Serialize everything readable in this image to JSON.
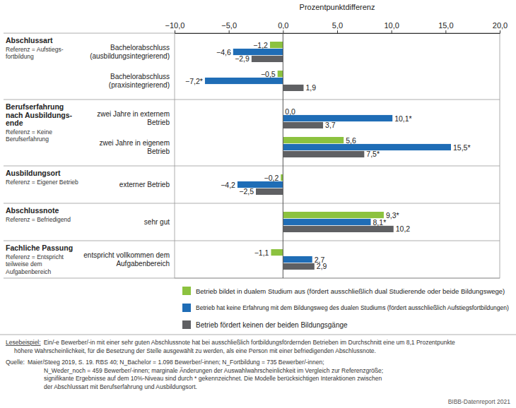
{
  "chart_data": {
    "type": "bar",
    "orientation": "horizontal",
    "xlabel": "Prozentpunktdifferenz",
    "xlim": [
      -10,
      20
    ],
    "xticks": [
      {
        "value": -10,
        "label": "−10,0"
      },
      {
        "value": -5,
        "label": "−5,0"
      },
      {
        "value": 0,
        "label": "0,0"
      },
      {
        "value": 5,
        "label": "5,0"
      },
      {
        "value": 10,
        "label": "10,0"
      },
      {
        "value": 15,
        "label": "15,0"
      },
      {
        "value": 20,
        "label": "20,0"
      }
    ],
    "grid": false,
    "data_labels": true,
    "legend": "bottom",
    "groups": [
      {
        "name": "Abschlussart",
        "reference": "Referenz = Aufstiegs-\nfortbildung",
        "categories": [
          "Bachelorabschluss\n(ausbildungsintegrierend)",
          "Bachelorabschluss\n(praxisintegrierend)"
        ]
      },
      {
        "name": "Berufserfahrung\nnach Ausbildungs-\nende",
        "reference": "Referenz = Keine\nBerufserfahrung",
        "categories": [
          "zwei Jahre in externem\nBetrieb",
          "zwei Jahre in eigenem\nBetrieb"
        ]
      },
      {
        "name": "Ausbildungsort",
        "reference": "Referenz = Eigener Betrieb",
        "categories": [
          "externer Betrieb"
        ]
      },
      {
        "name": "Abschlussnote",
        "reference": "Referenz = Befriedigend",
        "categories": [
          "sehr gut"
        ]
      },
      {
        "name": "Fachliche Passung",
        "reference": "Referenz = Entspricht\nteilweise dem\nAufgabenbereich",
        "categories": [
          "entspricht vollkommen dem\nAufgabenbereich"
        ]
      }
    ],
    "series": [
      {
        "name": "Betrieb bildet in dualem Studium aus (fördert ausschließlich dual Studierende oder beide Bildungswege)",
        "color": "#8cc23f",
        "values": [
          -1.2,
          -0.5,
          0.0,
          5.6,
          -0.2,
          9.3,
          -1.1
        ],
        "value_labels": [
          "−1,2",
          "−0,5",
          "0,0",
          "5,6",
          "−0,2",
          "9,3*",
          "−1,1"
        ]
      },
      {
        "name": "Betrieb hat keine Erfahrung mit dem Bildungsweg des dualen Studiums (fördert ausschließlich Aufstiegsfortbildungen)",
        "color": "#1f6db6",
        "values": [
          -4.6,
          -7.2,
          10.1,
          15.5,
          -4.2,
          8.1,
          2.7
        ],
        "value_labels": [
          "−4,6",
          "−7,2*",
          "10,1*",
          "15,5*",
          "−4,2",
          "8,1*",
          "2,7"
        ]
      },
      {
        "name": "Betrieb fördert keinen der beiden Bildungsgänge",
        "color": "#5f6063",
        "values": [
          -2.9,
          1.9,
          3.7,
          7.5,
          -2.5,
          10.2,
          2.9
        ],
        "value_labels": [
          "−2,9",
          "1,9",
          "3,7",
          "7,5*",
          "−2,5",
          "10,2",
          "2,9"
        ]
      }
    ],
    "notes": [
      {
        "label": "Lesebeispiel:",
        "lines": [
          "Ein/-e Bewerber/-in mit einer sehr guten Abschlussnote hat bei ausschließlich fortbildungsfördernden Betrieben im Durchschnitt eine um 8,1 Prozentpunkte",
          "höhere Wahrscheinlichkeit, für die Besetzung der Stelle ausgewählt zu werden, als eine Person mit einer befriedigenden Abschlussnote."
        ]
      },
      {
        "label": "Quelle:",
        "lines": [
          "Maier/Steeg 2019, S. 19. RBS 40; N_Bachelor = 1.098 Bewerber/-innen; N_Fortbildung = 735 Bewerber/-innen;",
          "N_Weder_noch = 459 Bewerber/-innen; marginale Änderungen der Auswahlwahrscheinlichkeit im Vergleich zur Referenzgröße;",
          "signifikante Ergebnisse auf dem 10%-Niveau sind durch * gekennzeichnet. Die Modelle berücksichtigen Interaktionen zwischen",
          "der Abschlussart mit Berufserfahrung und Ausbildungsort."
        ]
      }
    ],
    "credit": "BIBB-Datenreport 2021"
  }
}
